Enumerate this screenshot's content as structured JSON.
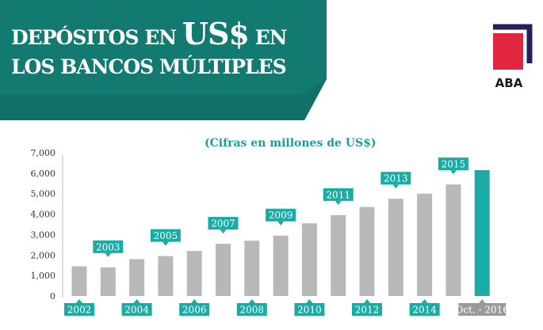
{
  "header": {
    "title_line1_a": "DEPÓSITOS EN",
    "title_line1_b": "US$",
    "title_line1_c": "EN",
    "title_line2": "LOS BANCOS MÚLTIPLES",
    "logo_text": "ABA"
  },
  "colors": {
    "banner": "#137a72",
    "banner_dark": "#0b5650",
    "accent": "#1aaba5",
    "bar": "#b8b8b8",
    "bar_highlight": "#1aaba5",
    "last_label": "#9a9a9a",
    "logo_red": "#e3263f",
    "logo_navy": "#23205e"
  },
  "chart_data": {
    "type": "bar",
    "title": "(Cifras en millones de US$)",
    "categories": [
      "2002",
      "2003",
      "2004",
      "2005",
      "2006",
      "2007",
      "2008",
      "2009",
      "2010",
      "2011",
      "2012",
      "2013",
      "2014",
      "2015",
      "Oct. - 2016"
    ],
    "values": [
      1450,
      1400,
      1800,
      1950,
      2200,
      2550,
      2700,
      2950,
      3550,
      3950,
      4350,
      4750,
      5000,
      5450,
      6150
    ],
    "ylim": [
      0,
      7000
    ],
    "yticks": [
      "0",
      "1,000",
      "2,000",
      "3,000",
      "4,000",
      "5,000",
      "6,000",
      "7,000"
    ],
    "ytick_values": [
      0,
      1000,
      2000,
      3000,
      4000,
      5000,
      6000,
      7000
    ],
    "xlabel": "",
    "ylabel": "",
    "grid": false,
    "highlight_index": 14
  }
}
